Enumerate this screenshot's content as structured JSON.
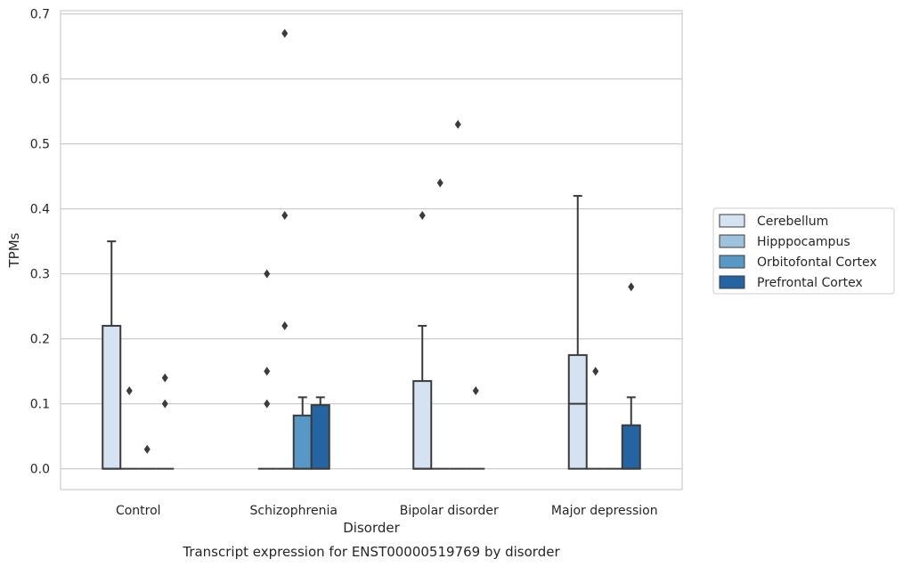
{
  "chart_data": {
    "type": "box",
    "title": "",
    "caption": "Transcript expression for ENST00000519769 by disorder",
    "xlabel": "Disorder",
    "ylabel": "TPMs",
    "ylim": [
      -0.032,
      0.705
    ],
    "yticks": [
      0.0,
      0.1,
      0.2,
      0.3,
      0.4,
      0.5,
      0.6,
      0.7
    ],
    "ytick_labels": [
      "0.0",
      "0.1",
      "0.2",
      "0.3",
      "0.4",
      "0.5",
      "0.6",
      "0.7"
    ],
    "grid": "horizontal",
    "legend_position": "right",
    "categories": [
      "Control",
      "Schizophrenia",
      "Bipolar disorder",
      "Major depression"
    ],
    "series": [
      {
        "name": "Cerebellum",
        "color": "#d4e2f1",
        "boxes": [
          {
            "q1": 0.0,
            "median": 0.0,
            "q3": 0.22,
            "whisker_low": 0.0,
            "whisker_high": 0.35,
            "outliers": []
          },
          {
            "q1": 0.0,
            "median": 0.0,
            "q3": 0.0,
            "whisker_low": 0.0,
            "whisker_high": 0.0,
            "outliers": [
              0.1,
              0.15,
              0.3
            ]
          },
          {
            "q1": 0.0,
            "median": 0.0,
            "q3": 0.135,
            "whisker_low": 0.0,
            "whisker_high": 0.22,
            "outliers": [
              0.39
            ]
          },
          {
            "q1": 0.0,
            "median": 0.1,
            "q3": 0.175,
            "whisker_low": 0.0,
            "whisker_high": 0.42,
            "outliers": []
          }
        ]
      },
      {
        "name": "Hipppocampus",
        "color": "#9ec2dc",
        "boxes": [
          {
            "q1": 0.0,
            "median": 0.0,
            "q3": 0.0,
            "whisker_low": 0.0,
            "whisker_high": 0.0,
            "outliers": [
              0.12
            ]
          },
          {
            "q1": 0.0,
            "median": 0.0,
            "q3": 0.0,
            "whisker_low": 0.0,
            "whisker_high": 0.0,
            "outliers": [
              0.22,
              0.39,
              0.67
            ]
          },
          {
            "q1": 0.0,
            "median": 0.0,
            "q3": 0.0,
            "whisker_low": 0.0,
            "whisker_high": 0.0,
            "outliers": [
              0.44
            ]
          },
          {
            "q1": 0.0,
            "median": 0.0,
            "q3": 0.0,
            "whisker_low": 0.0,
            "whisker_high": 0.0,
            "outliers": [
              0.15
            ]
          }
        ]
      },
      {
        "name": "Orbitofontal Cortex",
        "color": "#5798c6",
        "boxes": [
          {
            "q1": 0.0,
            "median": 0.0,
            "q3": 0.0,
            "whisker_low": 0.0,
            "whisker_high": 0.0,
            "outliers": [
              0.03
            ]
          },
          {
            "q1": 0.0,
            "median": 0.0,
            "q3": 0.082,
            "whisker_low": 0.0,
            "whisker_high": 0.11,
            "outliers": []
          },
          {
            "q1": 0.0,
            "median": 0.0,
            "q3": 0.0,
            "whisker_low": 0.0,
            "whisker_high": 0.0,
            "outliers": [
              0.53
            ]
          },
          {
            "q1": 0.0,
            "median": 0.0,
            "q3": 0.0,
            "whisker_low": 0.0,
            "whisker_high": 0.0,
            "outliers": []
          }
        ]
      },
      {
        "name": "Prefrontal Cortex",
        "color": "#2464a3",
        "boxes": [
          {
            "q1": 0.0,
            "median": 0.0,
            "q3": 0.0,
            "whisker_low": 0.0,
            "whisker_high": 0.0,
            "outliers": [
              0.1,
              0.14
            ]
          },
          {
            "q1": 0.0,
            "median": 0.0,
            "q3": 0.098,
            "whisker_low": 0.0,
            "whisker_high": 0.11,
            "outliers": []
          },
          {
            "q1": 0.0,
            "median": 0.0,
            "q3": 0.0,
            "whisker_low": 0.0,
            "whisker_high": 0.0,
            "outliers": [
              0.12
            ]
          },
          {
            "q1": 0.0,
            "median": 0.0,
            "q3": 0.067,
            "whisker_low": 0.0,
            "whisker_high": 0.11,
            "outliers": [
              0.28
            ]
          }
        ]
      }
    ]
  }
}
